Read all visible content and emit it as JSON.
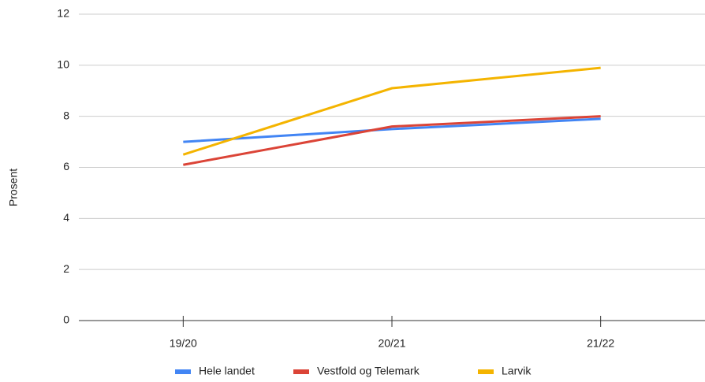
{
  "chart_data": {
    "type": "line",
    "y_label": "Prosent",
    "categories": [
      "19/20",
      "20/21",
      "21/22"
    ],
    "series": [
      {
        "name": "Hele landet",
        "color": "#4285f4",
        "values": [
          7.0,
          7.5,
          7.9
        ]
      },
      {
        "name": "Vestfold og Telemark",
        "color": "#db4437",
        "values": [
          6.1,
          7.6,
          8.0
        ]
      },
      {
        "name": "Larvik",
        "color": "#f4b400",
        "values": [
          6.5,
          9.1,
          9.9
        ]
      }
    ],
    "ylim": [
      0,
      12
    ],
    "yticks": [
      0,
      2,
      4,
      6,
      8,
      10,
      12
    ],
    "grid": true,
    "legend": "bottom"
  }
}
